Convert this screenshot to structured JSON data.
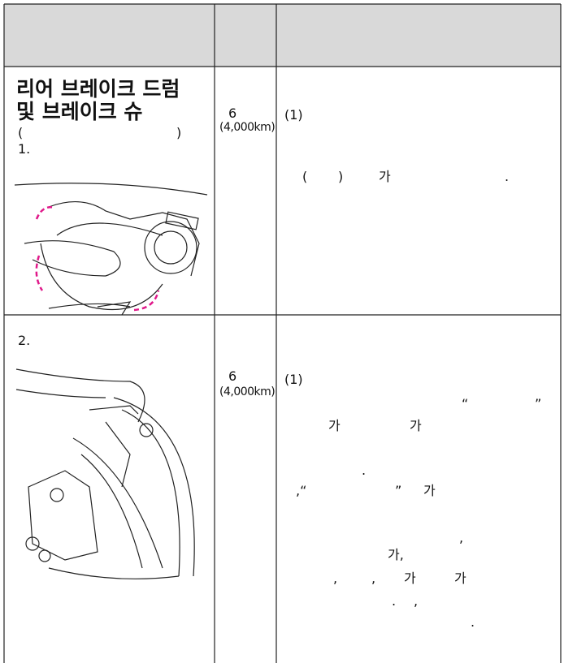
{
  "table": {
    "rows": [
      {
        "item": {
          "title_lines": [
            "리어 브레이크 드럼",
            "및 브레이크 슈"
          ],
          "paren_open": "(",
          "paren_close": ")",
          "step": "1."
        },
        "interval": {
          "value": "6",
          "distance": "(4,000km)"
        },
        "content": {
          "number": "(1)",
          "fragments": [
            "(",
            ")",
            "가",
            "."
          ]
        }
      },
      {
        "item": {
          "step": "2."
        },
        "interval": {
          "value": "6",
          "distance": "(4,000km)"
        },
        "content": {
          "number": "(1)",
          "fragments": [
            "“",
            "”",
            "가",
            "가",
            ".",
            ",“",
            "”",
            "가",
            ",",
            "가,",
            ",",
            ",",
            "가",
            "가",
            ".",
            ",",
            "."
          ]
        }
      }
    ]
  }
}
